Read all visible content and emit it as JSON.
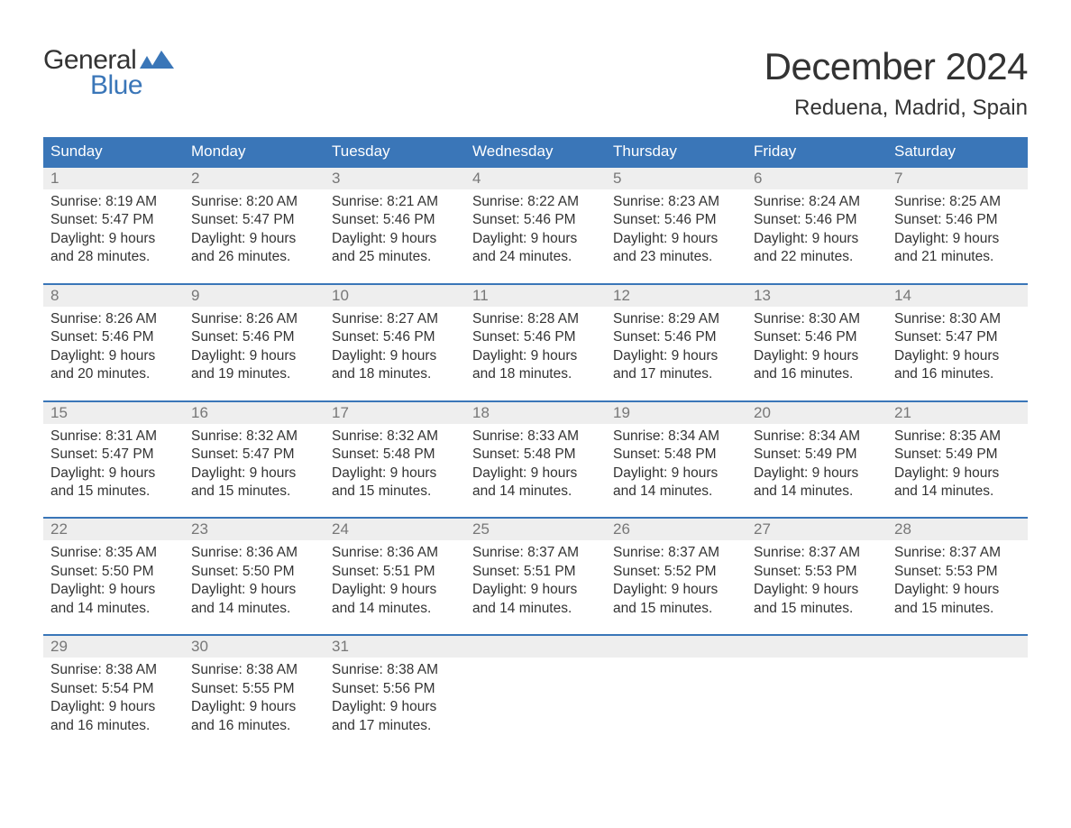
{
  "logo": {
    "word1": "General",
    "word2": "Blue",
    "text_color": "#333333",
    "blue": "#3a76b8"
  },
  "title": "December 2024",
  "subtitle": "Reduena, Madrid, Spain",
  "colors": {
    "header_bg": "#3a76b8",
    "header_text": "#ffffff",
    "daynum_bg": "#eeeeee",
    "daynum_text": "#777777",
    "body_text": "#333333",
    "background": "#ffffff",
    "week_border": "#3a76b8"
  },
  "day_names": [
    "Sunday",
    "Monday",
    "Tuesday",
    "Wednesday",
    "Thursday",
    "Friday",
    "Saturday"
  ],
  "weeks": [
    [
      {
        "n": "1",
        "sunrise": "8:19 AM",
        "sunset": "5:47 PM",
        "daylight": "9 hours and 28 minutes."
      },
      {
        "n": "2",
        "sunrise": "8:20 AM",
        "sunset": "5:47 PM",
        "daylight": "9 hours and 26 minutes."
      },
      {
        "n": "3",
        "sunrise": "8:21 AM",
        "sunset": "5:46 PM",
        "daylight": "9 hours and 25 minutes."
      },
      {
        "n": "4",
        "sunrise": "8:22 AM",
        "sunset": "5:46 PM",
        "daylight": "9 hours and 24 minutes."
      },
      {
        "n": "5",
        "sunrise": "8:23 AM",
        "sunset": "5:46 PM",
        "daylight": "9 hours and 23 minutes."
      },
      {
        "n": "6",
        "sunrise": "8:24 AM",
        "sunset": "5:46 PM",
        "daylight": "9 hours and 22 minutes."
      },
      {
        "n": "7",
        "sunrise": "8:25 AM",
        "sunset": "5:46 PM",
        "daylight": "9 hours and 21 minutes."
      }
    ],
    [
      {
        "n": "8",
        "sunrise": "8:26 AM",
        "sunset": "5:46 PM",
        "daylight": "9 hours and 20 minutes."
      },
      {
        "n": "9",
        "sunrise": "8:26 AM",
        "sunset": "5:46 PM",
        "daylight": "9 hours and 19 minutes."
      },
      {
        "n": "10",
        "sunrise": "8:27 AM",
        "sunset": "5:46 PM",
        "daylight": "9 hours and 18 minutes."
      },
      {
        "n": "11",
        "sunrise": "8:28 AM",
        "sunset": "5:46 PM",
        "daylight": "9 hours and 18 minutes."
      },
      {
        "n": "12",
        "sunrise": "8:29 AM",
        "sunset": "5:46 PM",
        "daylight": "9 hours and 17 minutes."
      },
      {
        "n": "13",
        "sunrise": "8:30 AM",
        "sunset": "5:46 PM",
        "daylight": "9 hours and 16 minutes."
      },
      {
        "n": "14",
        "sunrise": "8:30 AM",
        "sunset": "5:47 PM",
        "daylight": "9 hours and 16 minutes."
      }
    ],
    [
      {
        "n": "15",
        "sunrise": "8:31 AM",
        "sunset": "5:47 PM",
        "daylight": "9 hours and 15 minutes."
      },
      {
        "n": "16",
        "sunrise": "8:32 AM",
        "sunset": "5:47 PM",
        "daylight": "9 hours and 15 minutes."
      },
      {
        "n": "17",
        "sunrise": "8:32 AM",
        "sunset": "5:48 PM",
        "daylight": "9 hours and 15 minutes."
      },
      {
        "n": "18",
        "sunrise": "8:33 AM",
        "sunset": "5:48 PM",
        "daylight": "9 hours and 14 minutes."
      },
      {
        "n": "19",
        "sunrise": "8:34 AM",
        "sunset": "5:48 PM",
        "daylight": "9 hours and 14 minutes."
      },
      {
        "n": "20",
        "sunrise": "8:34 AM",
        "sunset": "5:49 PM",
        "daylight": "9 hours and 14 minutes."
      },
      {
        "n": "21",
        "sunrise": "8:35 AM",
        "sunset": "5:49 PM",
        "daylight": "9 hours and 14 minutes."
      }
    ],
    [
      {
        "n": "22",
        "sunrise": "8:35 AM",
        "sunset": "5:50 PM",
        "daylight": "9 hours and 14 minutes."
      },
      {
        "n": "23",
        "sunrise": "8:36 AM",
        "sunset": "5:50 PM",
        "daylight": "9 hours and 14 minutes."
      },
      {
        "n": "24",
        "sunrise": "8:36 AM",
        "sunset": "5:51 PM",
        "daylight": "9 hours and 14 minutes."
      },
      {
        "n": "25",
        "sunrise": "8:37 AM",
        "sunset": "5:51 PM",
        "daylight": "9 hours and 14 minutes."
      },
      {
        "n": "26",
        "sunrise": "8:37 AM",
        "sunset": "5:52 PM",
        "daylight": "9 hours and 15 minutes."
      },
      {
        "n": "27",
        "sunrise": "8:37 AM",
        "sunset": "5:53 PM",
        "daylight": "9 hours and 15 minutes."
      },
      {
        "n": "28",
        "sunrise": "8:37 AM",
        "sunset": "5:53 PM",
        "daylight": "9 hours and 15 minutes."
      }
    ],
    [
      {
        "n": "29",
        "sunrise": "8:38 AM",
        "sunset": "5:54 PM",
        "daylight": "9 hours and 16 minutes."
      },
      {
        "n": "30",
        "sunrise": "8:38 AM",
        "sunset": "5:55 PM",
        "daylight": "9 hours and 16 minutes."
      },
      {
        "n": "31",
        "sunrise": "8:38 AM",
        "sunset": "5:56 PM",
        "daylight": "9 hours and 17 minutes."
      },
      null,
      null,
      null,
      null
    ]
  ],
  "labels": {
    "sunrise": "Sunrise: ",
    "sunset": "Sunset: ",
    "daylight": "Daylight: "
  },
  "typography": {
    "title_fontsize": 42,
    "subtitle_fontsize": 24,
    "header_fontsize": 17,
    "body_fontsize": 15.5,
    "daynum_fontsize": 17
  }
}
